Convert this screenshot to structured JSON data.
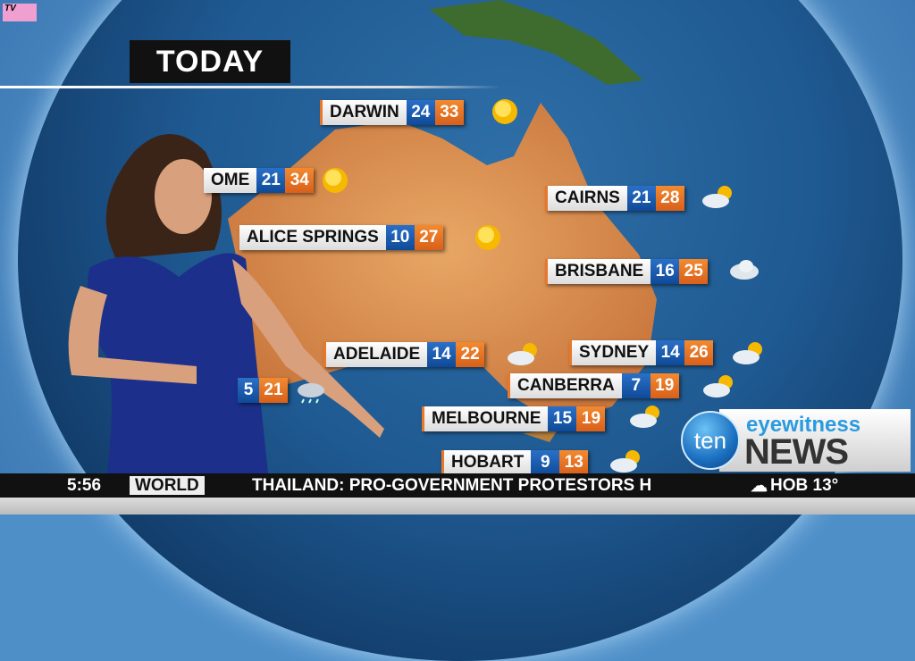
{
  "channel_bug": "TV",
  "title": "TODAY",
  "cities": [
    {
      "name": "DARWIN",
      "min": "24",
      "max": "33",
      "icon": "sun-icon"
    },
    {
      "name": "OME",
      "min": "21",
      "max": "34",
      "icon": "sun-icon"
    },
    {
      "name": "ALICE SPRINGS",
      "min": "10",
      "max": "27",
      "icon": "sun-icon"
    },
    {
      "name": "CAIRNS",
      "min": "21",
      "max": "28",
      "icon": "cloud-sun-icon"
    },
    {
      "name": "BRISBANE",
      "min": "16",
      "max": "25",
      "icon": "cloud-icon"
    },
    {
      "name": "ADELAIDE",
      "min": "14",
      "max": "22",
      "icon": "cloud-sun-icon"
    },
    {
      "name": "SYDNEY",
      "min": "14",
      "max": "26",
      "icon": "cloud-sun-icon"
    },
    {
      "name": "CANBERRA",
      "min": "7",
      "max": "19",
      "icon": "cloud-sun-icon"
    },
    {
      "name": "MELBOURNE",
      "min": "15",
      "max": "19",
      "icon": "cloud-sun-icon"
    },
    {
      "name": "HOBART",
      "min": "9",
      "max": "13",
      "icon": "cloud-sun-icon"
    },
    {
      "name": "",
      "min": "5",
      "max": "21",
      "icon": "rain-icon"
    }
  ],
  "ticker": {
    "time": "5:56",
    "category": "WORLD",
    "headline": "THAILAND: PRO-GOVERNMENT PROTESTORS H",
    "weather": "HOB 13°"
  },
  "logo": {
    "network": "ten",
    "line1": "eyewitness",
    "line2": "NEWS"
  },
  "colors": {
    "min": "#1a5cb0",
    "max": "#e8772a",
    "ticker": "#111111"
  }
}
